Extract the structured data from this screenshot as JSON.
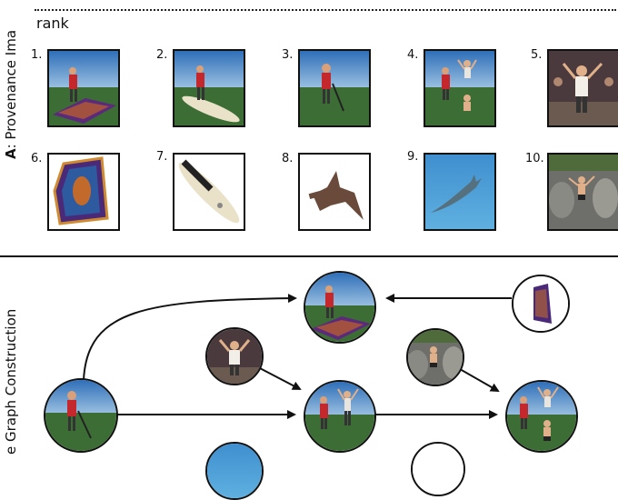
{
  "section_a": {
    "label_prefix": "A",
    "label_text": ": Provenance Ima"
  },
  "section_b": {
    "label_text": "e Graph Construction"
  },
  "rank": {
    "title": "rank",
    "items": [
      {
        "num": "1.",
        "icon": "man-on-carpet-image"
      },
      {
        "num": "2.",
        "icon": "man-on-paddleboard-image"
      },
      {
        "num": "3.",
        "icon": "man-by-lake-image"
      },
      {
        "num": "4.",
        "icon": "man-with-dancers-image"
      },
      {
        "num": "5.",
        "icon": "party-crowd-image"
      },
      {
        "num": "6.",
        "icon": "magic-carpet-image"
      },
      {
        "num": "7.",
        "icon": "paddleboard-image"
      },
      {
        "num": "8.",
        "icon": "hammerhead-shark-image"
      },
      {
        "num": "9.",
        "icon": "shark-in-water-image"
      },
      {
        "num": "10.",
        "icon": "dancer-on-rocks-image"
      }
    ]
  },
  "graph": {
    "nodes": [
      "carpet-composite",
      "carpet-source",
      "party-donor",
      "rocks-donor",
      "source-man",
      "dancers-composite",
      "final-composite",
      "water-node",
      "blank-node"
    ]
  }
}
